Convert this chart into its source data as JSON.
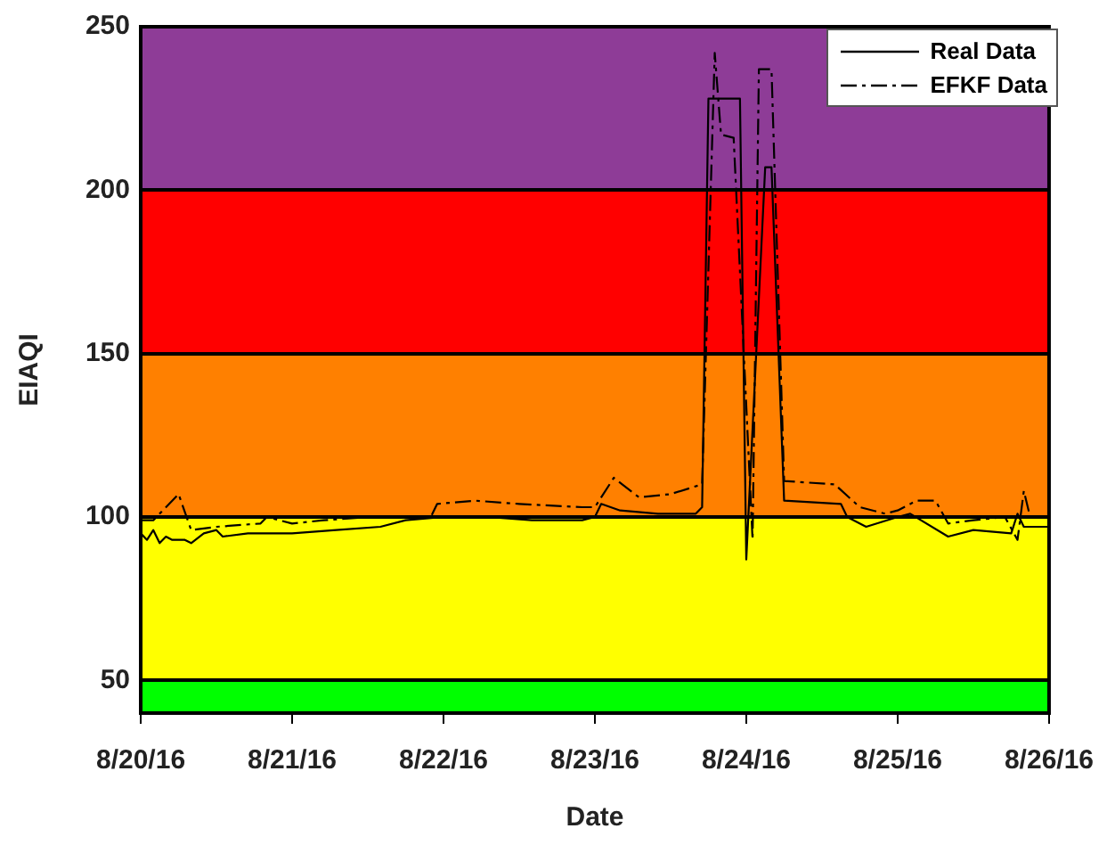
{
  "chart_data": {
    "type": "line",
    "xlabel": "Date",
    "ylabel": "EIAQI",
    "xlim": [
      "--08-20",
      "--08-26"
    ],
    "xticks": [
      {
        "value": "--08-20",
        "label": "8/20/16"
      },
      {
        "value": "--08-21",
        "label": "8/21/16"
      },
      {
        "value": "--08-22",
        "label": "8/22/16"
      },
      {
        "value": "--08-23",
        "label": "8/23/16"
      },
      {
        "value": "--08-24",
        "label": "8/24/16"
      },
      {
        "value": "--08-25",
        "label": "8/25/16"
      },
      {
        "value": "--08-26",
        "label": "8/26/16"
      }
    ],
    "ylim": [
      40,
      250
    ],
    "yticks": [
      50,
      100,
      150,
      200,
      250
    ],
    "grid": "y",
    "legend": "top right",
    "marker": "none",
    "bands": [
      {
        "axis": "y",
        "from": 40,
        "to": 50,
        "color": "#00ff00"
      },
      {
        "axis": "y",
        "from": 50,
        "to": 100,
        "color": "#ffff00"
      },
      {
        "axis": "y",
        "from": 100,
        "to": 150,
        "color": "#ff8000"
      },
      {
        "axis": "y",
        "from": 150,
        "to": 200,
        "color": "#ff0000"
      },
      {
        "axis": "y",
        "from": 200,
        "to": 250,
        "color": "#8e3c97"
      }
    ],
    "series": [
      {
        "name": "Real Data",
        "color": "#000000",
        "line_style": "solid",
        "x": [
          "--08-20T00:00",
          "--08-20T01:00",
          "--08-20T02:00",
          "--08-20T03:00",
          "--08-20T04:00",
          "--08-20T05:00",
          "--08-20T07:00",
          "--08-20T08:00",
          "--08-20T10:00",
          "--08-20T12:00",
          "--08-20T13:00",
          "--08-20T17:00",
          "--08-20T22:00",
          "--08-21T00:00",
          "--08-21T07:00",
          "--08-21T14:00",
          "--08-21T18:00",
          "--08-22T00:00",
          "--08-22T07:00",
          "--08-22T14:00",
          "--08-22T22:00",
          "--08-23T00:00",
          "--08-23T01:00",
          "--08-23T04:00",
          "--08-23T10:00",
          "--08-23T16:00",
          "--08-23T17:00",
          "--08-23T18:00",
          "--08-23T23:00",
          "--08-24T00:00",
          "--08-24T03:00",
          "--08-24T04:00",
          "--08-24T06:00",
          "--08-24T15:00",
          "--08-24T16:00",
          "--08-24T19:00",
          "--08-25T00:00",
          "--08-25T02:00",
          "--08-25T08:00",
          "--08-25T12:00",
          "--08-25T18:00",
          "--08-25T19:00",
          "--08-25T20:00",
          "--08-26T00:00"
        ],
        "values": [
          95,
          93,
          96,
          92,
          94,
          93,
          93,
          92,
          95,
          96,
          94,
          95,
          95,
          95,
          96,
          97,
          99,
          100,
          100,
          99,
          99,
          100,
          104,
          102,
          101,
          101,
          103,
          228,
          228,
          87,
          207,
          207,
          105,
          104,
          100,
          97,
          100,
          101,
          94,
          96,
          95,
          101,
          97,
          97
        ]
      },
      {
        "name": "EFKF Data",
        "color": "#000000",
        "line_style": "dashed",
        "x": [
          "--08-20T00:00",
          "--08-20T02:00",
          "--08-20T06:00",
          "--08-20T08:00",
          "--08-20T12:00",
          "--08-20T19:00",
          "--08-20T20:00",
          "--08-21T00:00",
          "--08-21T05:00",
          "--08-21T12:00",
          "--08-21T22:00",
          "--08-21T23:00",
          "--08-22T05:00",
          "--08-22T12:00",
          "--08-22T22:00",
          "--08-23T00:00",
          "--08-23T03:00",
          "--08-23T07:00",
          "--08-23T12:00",
          "--08-23T17:00",
          "--08-23T19:00",
          "--08-23T20:00",
          "--08-23T22:00",
          "--08-24T01:00",
          "--08-24T02:00",
          "--08-24T04:00",
          "--08-24T06:00",
          "--08-24T14:00",
          "--08-24T18:00",
          "--08-24T22:00",
          "--08-25T00:00",
          "--08-25T03:00",
          "--08-25T06:00",
          "--08-25T08:00",
          "--08-25T12:00",
          "--08-25T17:00",
          "--08-25T19:00",
          "--08-25T20:00",
          "--08-25T21:00",
          "--08-26T00:00"
        ],
        "values": [
          99,
          99,
          107,
          96,
          97,
          98,
          100,
          98,
          99,
          100,
          100,
          104,
          105,
          104,
          103,
          103,
          112,
          106,
          107,
          110,
          242,
          217,
          216,
          93,
          237,
          237,
          111,
          110,
          103,
          101,
          102,
          105,
          105,
          98,
          99,
          100,
          93,
          108,
          100,
          100
        ]
      }
    ]
  }
}
